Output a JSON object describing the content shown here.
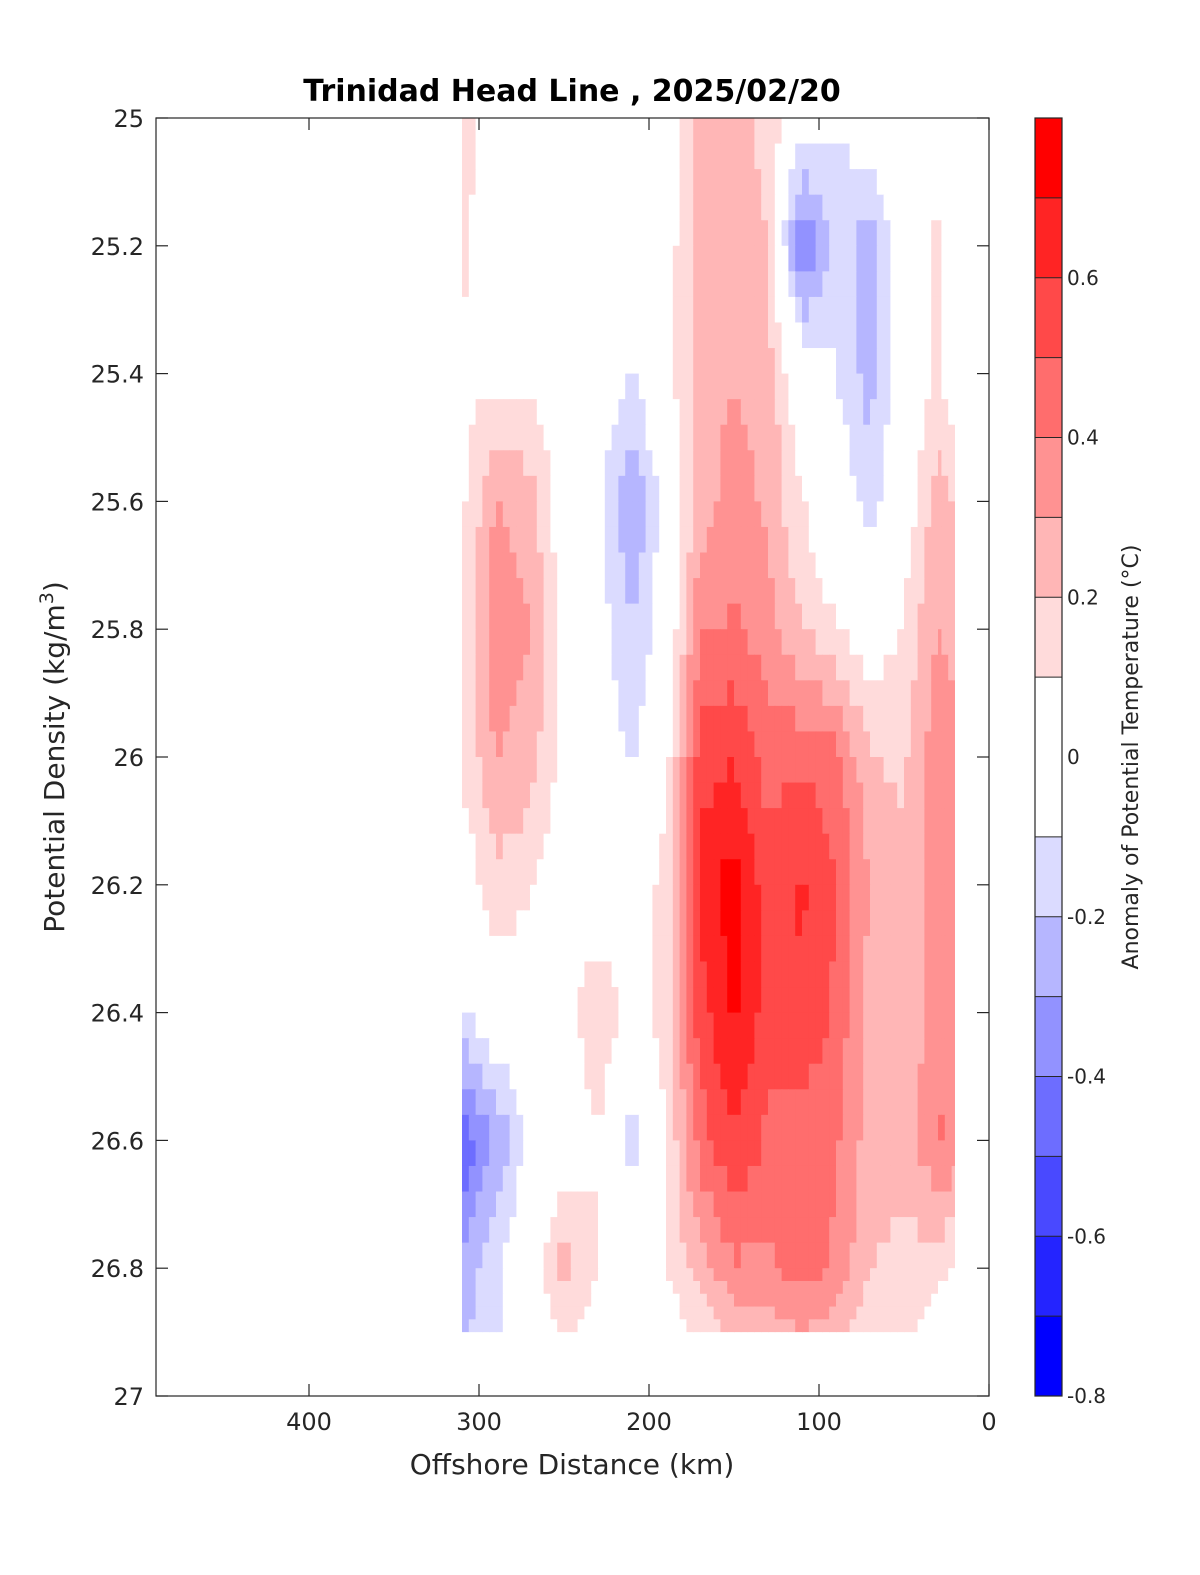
{
  "chart_data": {
    "type": "heatmap",
    "subtype": "filled-contour",
    "title": "Trinidad Head Line , 2025/02/20",
    "xlabel": "Offshore Distance (km)",
    "ylabel": "Potential Density (kg/m",
    "ylabel_superscript": "3",
    "ylabel_suffix": ")",
    "colorbar_label": "Anomaly of Potential Temperature (°C)",
    "xlim": [
      490,
      0
    ],
    "x_reversed": true,
    "ylim": [
      25,
      27
    ],
    "y_reversed": true,
    "xticks": [
      400,
      300,
      200,
      100,
      0
    ],
    "xtick_labels": [
      "400",
      "300",
      "200",
      "100",
      "0"
    ],
    "yticks": [
      25,
      25.2,
      25.4,
      25.6,
      25.8,
      26,
      26.2,
      26.4,
      26.6,
      26.8,
      27
    ],
    "ytick_labels": [
      "25",
      "25.2",
      "25.4",
      "25.6",
      "25.8",
      "26",
      "26.2",
      "26.4",
      "26.6",
      "26.8",
      "27"
    ],
    "colorbar_ticks": [
      0.6,
      0.4,
      0.2,
      0,
      -0.2,
      -0.4,
      -0.6,
      -0.8
    ],
    "colorbar_tick_labels": [
      "0.6",
      "0.4",
      "0.2",
      "0",
      "-0.2",
      "-0.4",
      "-0.6",
      "-0.8"
    ],
    "clim": [
      -0.8,
      0.8
    ],
    "levels": [
      -0.8,
      -0.7,
      -0.6,
      -0.5,
      -0.4,
      -0.3,
      -0.2,
      -0.1,
      0.1,
      0.2,
      0.3,
      0.4,
      0.5,
      0.6,
      0.7,
      0.8
    ],
    "zero_contour": "black",
    "x": [
      310,
      290,
      270,
      250,
      230,
      210,
      190,
      170,
      150,
      130,
      110,
      90,
      70,
      50,
      30,
      20
    ],
    "y": [
      25.0,
      25.2,
      25.4,
      25.6,
      25.8,
      26.0,
      26.2,
      26.4,
      26.6,
      26.8,
      26.9
    ],
    "z": [
      [
        0.15,
        0.05,
        -0.05,
        0.0,
        0.0,
        0.02,
        0.0,
        0.25,
        0.22,
        0.18,
        0.0,
        -0.1,
        0.0,
        0.02,
        0.05,
        0.0
      ],
      [
        0.15,
        -0.08,
        0.0,
        0.02,
        -0.02,
        0.0,
        0.05,
        0.22,
        0.25,
        0.2,
        -0.45,
        -0.15,
        -0.25,
        0.0,
        0.12,
        0.05
      ],
      [
        0.05,
        0.08,
        0.05,
        0.02,
        -0.02,
        -0.1,
        0.05,
        0.25,
        0.3,
        0.25,
        0.0,
        -0.1,
        -0.25,
        0.0,
        0.12,
        0.0
      ],
      [
        0.08,
        0.3,
        0.25,
        0.02,
        -0.05,
        -0.3,
        -0.05,
        0.25,
        0.35,
        0.28,
        0.1,
        0.0,
        -0.15,
        0.02,
        0.25,
        0.2
      ],
      [
        0.12,
        0.38,
        0.3,
        0.05,
        -0.05,
        -0.2,
        -0.02,
        0.38,
        0.42,
        0.35,
        0.2,
        0.1,
        0.02,
        0.12,
        0.3,
        0.25
      ],
      [
        0.12,
        0.3,
        0.25,
        0.05,
        -0.02,
        -0.12,
        0.05,
        0.55,
        0.6,
        0.45,
        0.48,
        0.45,
        0.2,
        0.18,
        0.38,
        0.38
      ],
      [
        0.02,
        0.18,
        0.12,
        0.0,
        0.02,
        0.0,
        0.15,
        0.65,
        0.75,
        0.55,
        0.62,
        0.5,
        0.3,
        0.22,
        0.38,
        0.36
      ],
      [
        -0.12,
        0.02,
        0.0,
        0.05,
        0.18,
        0.05,
        0.15,
        0.55,
        0.72,
        0.55,
        0.58,
        0.48,
        0.25,
        0.22,
        0.35,
        0.35
      ],
      [
        -0.48,
        -0.3,
        -0.05,
        0.0,
        0.1,
        -0.15,
        0.1,
        0.45,
        0.6,
        0.48,
        0.45,
        0.42,
        0.25,
        0.22,
        0.42,
        0.38
      ],
      [
        -0.28,
        -0.12,
        0.0,
        0.25,
        0.1,
        0.0,
        0.1,
        0.25,
        0.38,
        0.38,
        0.45,
        0.38,
        0.2,
        0.18,
        0.12,
        0.1
      ],
      [
        -0.22,
        -0.12,
        0.0,
        0.12,
        0.05,
        0.0,
        0.02,
        0.12,
        0.22,
        0.25,
        0.3,
        0.25,
        0.12,
        0.12,
        0.05,
        0.02
      ]
    ]
  }
}
